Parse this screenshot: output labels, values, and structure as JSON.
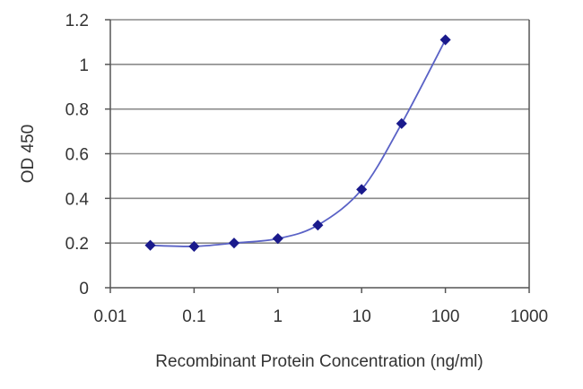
{
  "chart_data": {
    "type": "line",
    "xscale": "log",
    "xlim": [
      0.01,
      1000
    ],
    "ylim": [
      0,
      1.2
    ],
    "xticks": [
      0.01,
      0.1,
      1,
      10,
      100,
      1000
    ],
    "xtick_labels": [
      "0.01",
      "0.1",
      "1",
      "10",
      "100",
      "1000"
    ],
    "yticks": [
      0,
      0.2,
      0.4,
      0.6,
      0.8,
      1,
      1.2
    ],
    "ytick_labels": [
      "0",
      "0.2",
      "0.4",
      "0.6",
      "0.8",
      "1",
      "1.2"
    ],
    "xlabel": "Recombinant Protein Concentration (ng/ml)",
    "ylabel": "OD 450",
    "grid": "horizontal",
    "series": [
      {
        "x": [
          0.03,
          0.1,
          0.3,
          1,
          3,
          10,
          30,
          100
        ],
        "values": [
          0.19,
          0.185,
          0.2,
          0.22,
          0.28,
          0.44,
          0.735,
          1.11
        ]
      }
    ],
    "colors": {
      "line": "#5a62c6",
      "marker": "#1a1a8c",
      "grid": "#8a8a8a",
      "axis": "#555555"
    }
  }
}
